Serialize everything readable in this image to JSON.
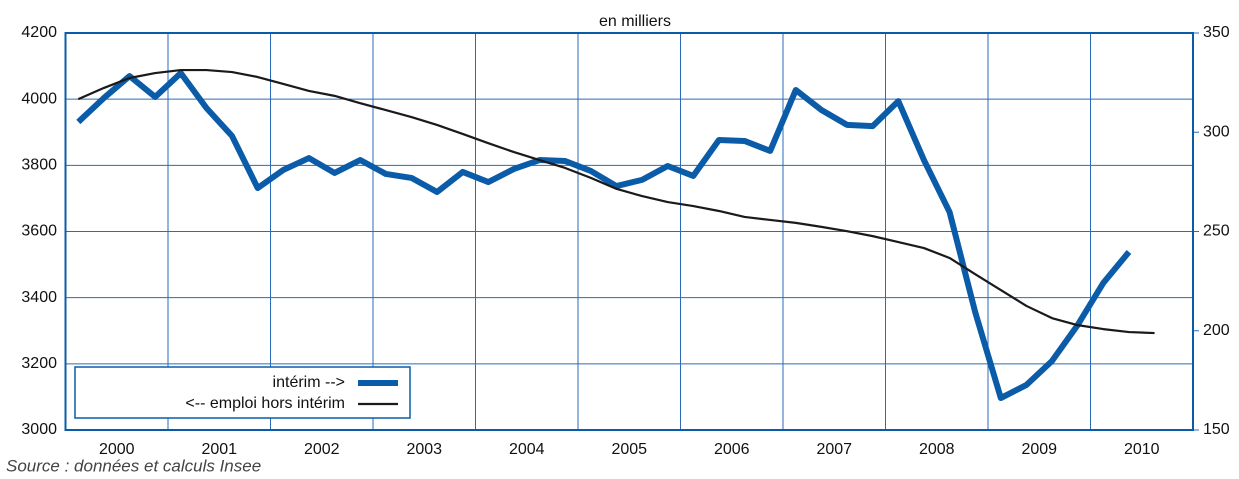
{
  "chart_data": {
    "type": "line",
    "title": "en milliers",
    "source": "Source : données et calculs Insee",
    "x": [
      2000.125,
      2000.375,
      2000.625,
      2000.875,
      2001.125,
      2001.375,
      2001.625,
      2001.875,
      2002.125,
      2002.375,
      2002.625,
      2002.875,
      2003.125,
      2003.375,
      2003.625,
      2003.875,
      2004.125,
      2004.375,
      2004.625,
      2004.875,
      2005.125,
      2005.375,
      2005.625,
      2005.875,
      2006.125,
      2006.375,
      2006.625,
      2006.875,
      2007.125,
      2007.375,
      2007.625,
      2007.875,
      2008.125,
      2008.375,
      2008.625,
      2008.875,
      2009.125,
      2009.375,
      2009.625,
      2009.875,
      2010.125,
      2010.375,
      2010.625
    ],
    "series": [
      {
        "name": "intérim -->",
        "color": "#0b5ca8",
        "axis": "y2",
        "values": [
          305.2,
          317.3,
          328.3,
          317.8,
          329.8,
          312.2,
          298.1,
          271.9,
          281.0,
          287.0,
          279.5,
          286.0,
          279.0,
          277.0,
          269.9,
          280.0,
          274.9,
          281.5,
          286.0,
          285.5,
          280.5,
          272.9,
          276.0,
          283.0,
          278.0,
          296.1,
          295.6,
          290.6,
          321.3,
          311.2,
          303.7,
          303.1,
          315.7,
          286.0,
          259.8,
          209.4,
          166.1,
          172.7,
          184.8,
          202.9,
          224.1,
          239.7,
          null
        ]
      },
      {
        "name": "<-- emploi hors intérim",
        "color": "#1a1a1a",
        "values": [
          4000,
          4034,
          4064,
          4079,
          4088,
          4088,
          4082,
          4067,
          4046,
          4025,
          4010,
          3988,
          3967,
          3946,
          3922,
          3895,
          3867,
          3840,
          3816,
          3792,
          3762,
          3729,
          3707,
          3689,
          3677,
          3662,
          3644,
          3635,
          3626,
          3614,
          3601,
          3586,
          3568,
          3550,
          3520,
          3471,
          3423,
          3375,
          3338,
          3317,
          3305,
          3296,
          3293
        ]
      }
    ],
    "xlim": [
      2000,
      2011
    ],
    "xticks": [
      {
        "value": 2000.5,
        "label": "2000"
      },
      {
        "value": 2001.5,
        "label": "2001"
      },
      {
        "value": 2002.5,
        "label": "2002"
      },
      {
        "value": 2003.5,
        "label": "2003"
      },
      {
        "value": 2004.5,
        "label": "2004"
      },
      {
        "value": 2005.5,
        "label": "2005"
      },
      {
        "value": 2006.5,
        "label": "2006"
      },
      {
        "value": 2007.5,
        "label": "2007"
      },
      {
        "value": 2008.5,
        "label": "2008"
      },
      {
        "value": 2009.5,
        "label": "2009"
      },
      {
        "value": 2010.5,
        "label": "2010"
      }
    ],
    "ylim": [
      3000,
      4200
    ],
    "yticks": [
      3000,
      3200,
      3400,
      3600,
      3800,
      4000,
      4200
    ],
    "y2lim": [
      150,
      350
    ],
    "y2ticks": [
      150,
      200,
      250,
      300,
      350
    ],
    "grid": true,
    "legend": "lower left"
  }
}
